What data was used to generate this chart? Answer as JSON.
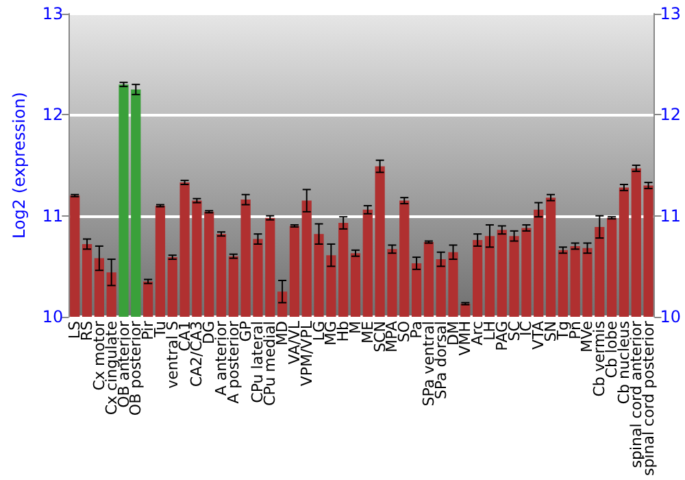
{
  "chart_data": {
    "type": "bar",
    "ylabel": "Log2 (expression)",
    "categories": [
      "LS",
      "RS",
      "Cx motor",
      "Cx cingulate",
      "OB anterior",
      "OB posterior",
      "Pir",
      "Tu",
      "ventral S",
      "CA1",
      "CA2/CA3",
      "DG",
      "A anterior",
      "A posterior",
      "GP",
      "CPu lateral",
      "CPu medial",
      "MD",
      "VA/VL",
      "VPM/VPL",
      "LG",
      "MG",
      "Hb",
      "M",
      "ME",
      "SCN",
      "MPA",
      "SO",
      "Pa",
      "SPa ventral",
      "SPa dorsal",
      "DM",
      "VMH",
      "Arc",
      "LH",
      "PAG",
      "SC",
      "IC",
      "VTA",
      "SN",
      "Tg",
      "Pn",
      "MVe",
      "Cb vermis",
      "Cb lobe",
      "Cb nucleus",
      "spinal cord anterior",
      "spinal cord posterior"
    ],
    "values": [
      11.2,
      10.72,
      10.58,
      10.44,
      12.3,
      12.25,
      10.35,
      11.1,
      10.59,
      11.33,
      11.15,
      11.04,
      10.82,
      10.6,
      11.16,
      10.77,
      10.98,
      10.25,
      10.9,
      11.15,
      10.82,
      10.61,
      10.93,
      10.63,
      11.06,
      11.49,
      10.67,
      11.15,
      10.53,
      10.74,
      10.57,
      10.64,
      10.13,
      10.76,
      10.8,
      10.86,
      10.8,
      10.88,
      11.06,
      11.18,
      10.66,
      10.7,
      10.68,
      10.89,
      10.98,
      11.28,
      11.47,
      11.3
    ],
    "errors": [
      0.01,
      0.05,
      0.12,
      0.13,
      0.02,
      0.05,
      0.02,
      0.01,
      0.02,
      0.02,
      0.02,
      0.01,
      0.02,
      0.02,
      0.05,
      0.05,
      0.02,
      0.11,
      0.01,
      0.11,
      0.1,
      0.11,
      0.06,
      0.03,
      0.04,
      0.06,
      0.04,
      0.03,
      0.06,
      0.01,
      0.07,
      0.07,
      0.01,
      0.06,
      0.11,
      0.04,
      0.05,
      0.03,
      0.07,
      0.03,
      0.03,
      0.03,
      0.05,
      0.11,
      0.01,
      0.03,
      0.03,
      0.03
    ],
    "colors": [
      "#b03030",
      "#b03030",
      "#b03030",
      "#b03030",
      "#3aa03a",
      "#3aa03a",
      "#b03030",
      "#b03030",
      "#b03030",
      "#b03030",
      "#b03030",
      "#b03030",
      "#b03030",
      "#b03030",
      "#b03030",
      "#b03030",
      "#b03030",
      "#b03030",
      "#b03030",
      "#b03030",
      "#b03030",
      "#b03030",
      "#b03030",
      "#b03030",
      "#b03030",
      "#b03030",
      "#b03030",
      "#b03030",
      "#b03030",
      "#b03030",
      "#b03030",
      "#b03030",
      "#b03030",
      "#b03030",
      "#b03030",
      "#b03030",
      "#b03030",
      "#b03030",
      "#b03030",
      "#b03030",
      "#b03030",
      "#b03030",
      "#b03030",
      "#b03030",
      "#b03030",
      "#b03030",
      "#b03030",
      "#b03030"
    ],
    "ylim": [
      10,
      13
    ],
    "yticks": [
      10,
      11,
      12,
      13
    ],
    "y2lim": [
      10,
      13
    ],
    "y2ticks": [
      10,
      11,
      12,
      13
    ],
    "grid": "y"
  }
}
